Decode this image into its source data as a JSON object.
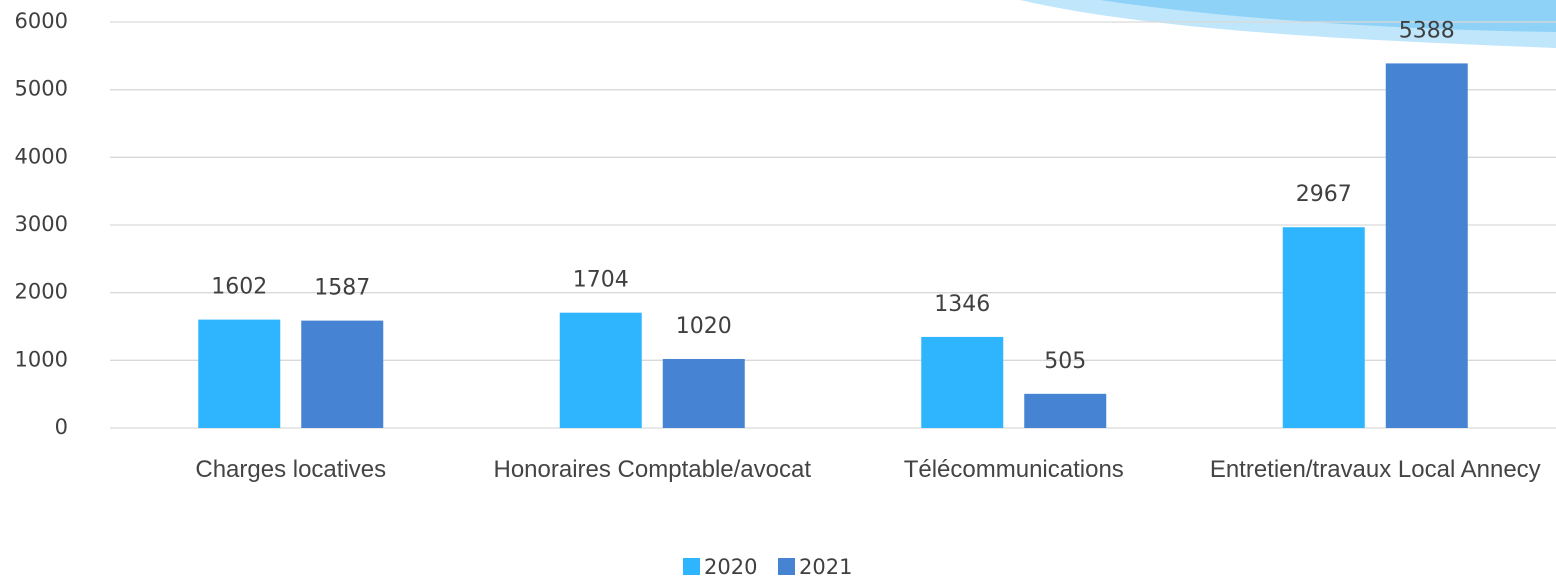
{
  "chart_data": {
    "type": "bar",
    "categories": [
      "Charges locatives",
      "Honoraires Comptable/avocat",
      "Télécommunications",
      "Entretien/travaux Local Annecy"
    ],
    "series": [
      {
        "name": "2020",
        "color": "#2fb5fd",
        "values": [
          1602,
          1704,
          1346,
          2967
        ]
      },
      {
        "name": "2021",
        "color": "#4683d3",
        "values": [
          1587,
          1020,
          505,
          5388
        ]
      }
    ],
    "ylim": [
      0,
      6000
    ],
    "yticks": [
      0,
      1000,
      2000,
      3000,
      4000,
      5000,
      6000
    ],
    "grid": true,
    "legend": "bottom"
  }
}
